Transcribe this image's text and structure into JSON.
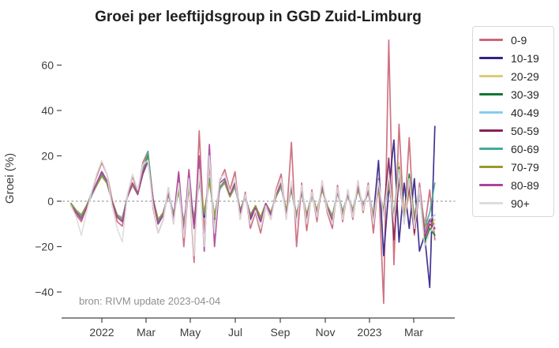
{
  "chart_data": {
    "type": "line",
    "title": "Groei per leeftijdsgroup in GGD Zuid-Limburg",
    "xlabel": "",
    "ylabel": "Groei (%)",
    "source_note": "bron: RIVM update 2023-04-04",
    "x_start_date": "2021-11-20",
    "x_interval_days": 7,
    "x_tick_labels": [
      "2022",
      "Mar",
      "May",
      "Jul",
      "Sep",
      "Nov",
      "2023",
      "Mar"
    ],
    "y_ticks": [
      60,
      40,
      20,
      0,
      -20,
      -40
    ],
    "y_tick_labels": [
      "60",
      "40",
      "20",
      "0",
      "−20",
      "−40"
    ],
    "ylim": [
      -52,
      75
    ],
    "grid": false,
    "zero_line": "dotted",
    "legend_position": "right",
    "series": [
      {
        "name": "0-9",
        "color": "#CC6677",
        "values": [
          -2,
          -6,
          -9,
          -3,
          4,
          11,
          17,
          12,
          1,
          -9,
          -11,
          3,
          11,
          4,
          17,
          22,
          -3,
          -14,
          -8,
          6,
          -10,
          12,
          -20,
          10,
          -27,
          31,
          -14,
          16,
          -12,
          9,
          14,
          5,
          13,
          -8,
          4,
          -12,
          -5,
          -14,
          -2,
          -8,
          5,
          12,
          -8,
          26,
          -20,
          8,
          -13,
          5,
          -9,
          9,
          -5,
          -12,
          7,
          -9,
          5,
          -8,
          9,
          -5,
          8,
          -14,
          10,
          -45,
          71,
          -28,
          34,
          -10,
          28,
          -15,
          8,
          -12,
          5,
          -17
        ]
      },
      {
        "name": "10-19",
        "color": "#332288",
        "values": [
          -1,
          -5,
          -7,
          -2,
          3,
          8,
          13,
          9,
          0,
          -7,
          -9,
          2,
          8,
          3,
          13,
          19,
          1,
          -10,
          -6,
          4,
          -6,
          5,
          -12,
          6,
          -10,
          9,
          -7,
          10,
          -8,
          6,
          9,
          3,
          8,
          -5,
          2,
          -8,
          -3,
          -9,
          -1,
          -6,
          3,
          7,
          -5,
          6,
          -8,
          5,
          -7,
          3,
          -5,
          6,
          -3,
          -8,
          5,
          -6,
          3,
          -5,
          6,
          -3,
          5,
          -7,
          18,
          -24,
          5,
          27,
          -18,
          8,
          -12,
          10,
          -22,
          -15,
          -38,
          33
        ]
      },
      {
        "name": "20-29",
        "color": "#DDCC77",
        "values": [
          -1,
          -4,
          -7,
          -2,
          3,
          8,
          12,
          9,
          1,
          -6,
          -8,
          2,
          8,
          3,
          12,
          18,
          1,
          -8,
          -5,
          3,
          -6,
          5,
          -10,
          6,
          -8,
          9,
          -5,
          10,
          -7,
          6,
          9,
          2,
          7,
          -4,
          2,
          -6,
          -2,
          -8,
          -1,
          -5,
          2,
          7,
          -4,
          5,
          -6,
          4,
          -7,
          2,
          -4,
          6,
          -2,
          -7,
          4,
          -5,
          2,
          -4,
          6,
          -2,
          4,
          -6,
          6,
          -4,
          8,
          -6,
          17,
          -8,
          3,
          -6,
          4,
          -9,
          -12,
          -8
        ]
      },
      {
        "name": "30-39",
        "color": "#117733",
        "values": [
          -1,
          -4,
          -6,
          -2,
          3,
          7,
          12,
          8,
          0,
          -6,
          -8,
          2,
          8,
          3,
          13,
          20,
          1,
          -9,
          -5,
          3,
          -6,
          5,
          -10,
          6,
          -8,
          9,
          -6,
          10,
          -7,
          5,
          9,
          2,
          7,
          -4,
          2,
          -6,
          -2,
          -8,
          -1,
          -5,
          2,
          7,
          -4,
          5,
          -7,
          4,
          -6,
          3,
          -5,
          6,
          -2,
          -7,
          4,
          -5,
          3,
          -4,
          6,
          -2,
          4,
          -7,
          6,
          -5,
          8,
          -7,
          15,
          -9,
          12,
          -8,
          5,
          -18,
          -12,
          -15
        ]
      },
      {
        "name": "40-49",
        "color": "#88CCEE",
        "values": [
          -1,
          -4,
          -6,
          -2,
          2,
          7,
          11,
          8,
          0,
          -6,
          -7,
          2,
          7,
          3,
          12,
          17,
          1,
          -8,
          -5,
          3,
          -5,
          4,
          -9,
          6,
          -7,
          8,
          -5,
          9,
          -6,
          5,
          8,
          2,
          6,
          -4,
          2,
          -6,
          -2,
          -7,
          -1,
          -5,
          2,
          6,
          -4,
          5,
          -6,
          4,
          -6,
          2,
          -4,
          5,
          -2,
          -6,
          4,
          -4,
          2,
          -4,
          5,
          -2,
          4,
          -6,
          5,
          -4,
          7,
          -5,
          10,
          -7,
          8,
          -6,
          4,
          -10,
          -8,
          -6
        ]
      },
      {
        "name": "50-59",
        "color": "#882255",
        "values": [
          -1,
          -5,
          -7,
          -2,
          3,
          8,
          12,
          9,
          0,
          -6,
          -8,
          2,
          8,
          3,
          12,
          18,
          1,
          -9,
          -5,
          3,
          -6,
          5,
          -10,
          6,
          -9,
          9,
          -6,
          10,
          -7,
          6,
          9,
          2,
          7,
          -5,
          2,
          -7,
          -2,
          -8,
          -1,
          -5,
          2,
          7,
          -5,
          6,
          -7,
          4,
          -7,
          3,
          -5,
          6,
          -2,
          -7,
          4,
          -5,
          3,
          -5,
          6,
          -2,
          5,
          -7,
          6,
          -5,
          19,
          -17,
          10,
          -8,
          6,
          -14,
          5,
          -16,
          -10,
          -12
        ]
      },
      {
        "name": "60-69",
        "color": "#44AA99",
        "values": [
          -1,
          -4,
          -7,
          -2,
          3,
          8,
          12,
          9,
          0,
          -6,
          -8,
          2,
          8,
          3,
          14,
          22,
          1,
          -9,
          -5,
          3,
          -6,
          5,
          -10,
          6,
          -8,
          9,
          -6,
          10,
          -7,
          6,
          9,
          2,
          8,
          -4,
          2,
          -6,
          -2,
          -8,
          -1,
          -5,
          2,
          7,
          -4,
          6,
          -6,
          4,
          -6,
          3,
          -4,
          6,
          -2,
          -7,
          4,
          -5,
          3,
          -4,
          6,
          -2,
          4,
          -6,
          6,
          -4,
          8,
          -6,
          12,
          -8,
          10,
          -7,
          5,
          -12,
          -5,
          8
        ]
      },
      {
        "name": "70-79",
        "color": "#999933",
        "values": [
          -1,
          -4,
          -6,
          -2,
          3,
          7,
          11,
          8,
          0,
          -6,
          -8,
          2,
          7,
          3,
          13,
          19,
          1,
          -8,
          -5,
          3,
          -6,
          5,
          -10,
          6,
          -8,
          9,
          -5,
          9,
          -7,
          6,
          8,
          2,
          7,
          -4,
          2,
          -6,
          -2,
          -7,
          -1,
          -5,
          2,
          7,
          -4,
          5,
          -6,
          4,
          -6,
          3,
          -4,
          5,
          -2,
          -7,
          4,
          -5,
          3,
          -4,
          5,
          -2,
          4,
          -6,
          5,
          -4,
          7,
          -6,
          11,
          -7,
          9,
          -7,
          4,
          -11,
          -9,
          -10
        ]
      },
      {
        "name": "80-89",
        "color": "#AA4499",
        "values": [
          -2,
          -5,
          -8,
          -3,
          3,
          8,
          13,
          9,
          0,
          -7,
          -9,
          2,
          8,
          3,
          13,
          18,
          1,
          -10,
          -6,
          4,
          -8,
          13,
          -14,
          14,
          -12,
          20,
          -22,
          25,
          -20,
          8,
          10,
          3,
          8,
          -5,
          2,
          -7,
          -3,
          -9,
          -1,
          -6,
          3,
          8,
          -6,
          7,
          -8,
          5,
          -8,
          3,
          -6,
          7,
          -3,
          -9,
          5,
          -7,
          4,
          -6,
          7,
          -3,
          5,
          -8,
          7,
          -6,
          10,
          -8,
          12,
          -9,
          8,
          -10,
          6,
          -14,
          -8,
          -12
        ]
      },
      {
        "name": "90+",
        "color": "#DDDDDD",
        "values": [
          -2,
          -7,
          -15,
          -5,
          4,
          12,
          18,
          12,
          -2,
          -12,
          -18,
          3,
          12,
          5,
          16,
          18,
          -2,
          -14,
          -8,
          6,
          -10,
          8,
          -16,
          10,
          -24,
          14,
          -20,
          20,
          -14,
          10,
          12,
          4,
          10,
          -8,
          3,
          -10,
          -4,
          -12,
          -2,
          -8,
          4,
          10,
          -8,
          9,
          -10,
          7,
          -10,
          4,
          -7,
          9,
          -4,
          -10,
          6,
          -8,
          5,
          -7,
          9,
          -4,
          7,
          -10,
          9,
          -7,
          12,
          -9,
          14,
          -10,
          10,
          -12,
          6,
          -20,
          -14,
          -10
        ]
      }
    ]
  }
}
